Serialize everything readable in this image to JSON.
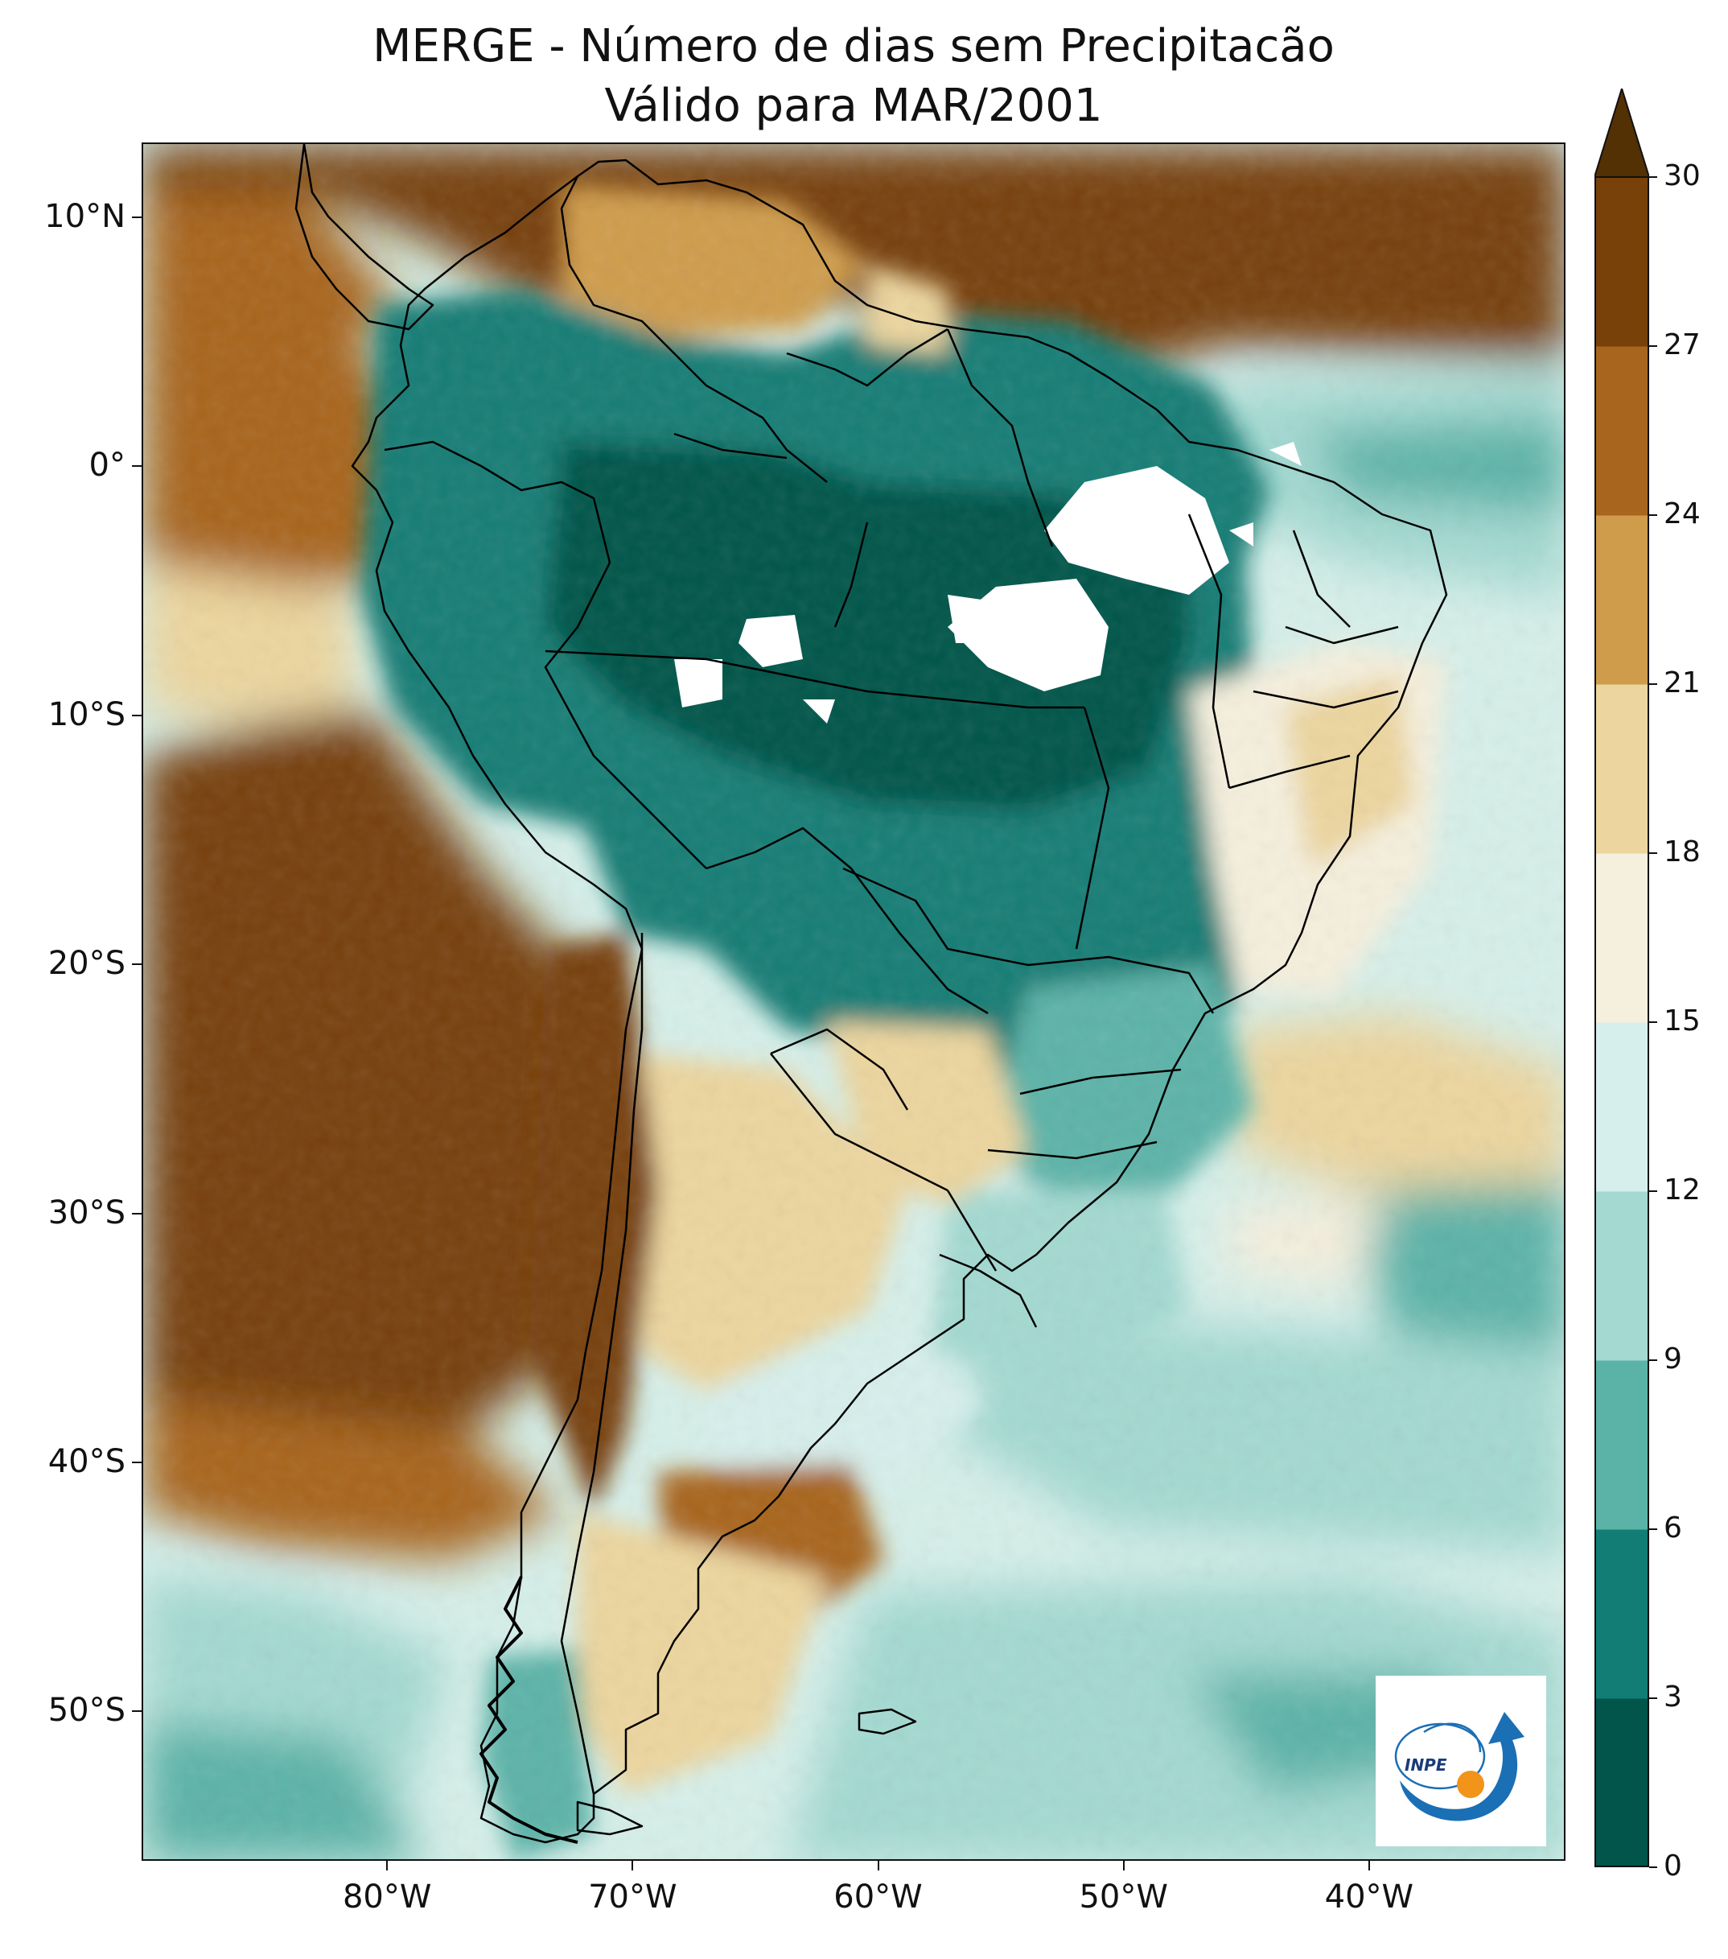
{
  "title": {
    "line1": "MERGE - Número de dias sem Precipitacão",
    "line2": "Válido para MAR/2001"
  },
  "map": {
    "lon_range": [
      -90,
      -32
    ],
    "lat_range": [
      -56,
      13
    ],
    "lat_ticks": [
      {
        "value": 10,
        "label": "10°N"
      },
      {
        "value": 0,
        "label": "0°"
      },
      {
        "value": -10,
        "label": "10°S"
      },
      {
        "value": -20,
        "label": "20°S"
      },
      {
        "value": -30,
        "label": "30°S"
      },
      {
        "value": -40,
        "label": "40°S"
      },
      {
        "value": -50,
        "label": "50°S"
      }
    ],
    "lon_ticks": [
      {
        "value": -80,
        "label": "80°W"
      },
      {
        "value": -70,
        "label": "70°W"
      },
      {
        "value": -60,
        "label": "60°W"
      },
      {
        "value": -50,
        "label": "50°W"
      },
      {
        "value": -40,
        "label": "40°W"
      }
    ],
    "no_data_color": "#ffffff",
    "border_color": "#000000"
  },
  "colorbar": {
    "levels": [
      0,
      3,
      6,
      9,
      12,
      15,
      18,
      21,
      24,
      27,
      30
    ],
    "labels": [
      "0",
      "3",
      "6",
      "9",
      "12",
      "15",
      "18",
      "21",
      "24",
      "27",
      "30"
    ],
    "colors": [
      "#01554a",
      "#127d75",
      "#5bb3a8",
      "#a3d9d1",
      "#d7efec",
      "#f5efdd",
      "#ecd59e",
      "#cf9c4c",
      "#a8651e",
      "#774109"
    ],
    "extend_max_color": "#543005"
  },
  "logo": {
    "text": "INPE",
    "arrow_color": "#1a6fb5",
    "dot_color": "#f2941a"
  }
}
